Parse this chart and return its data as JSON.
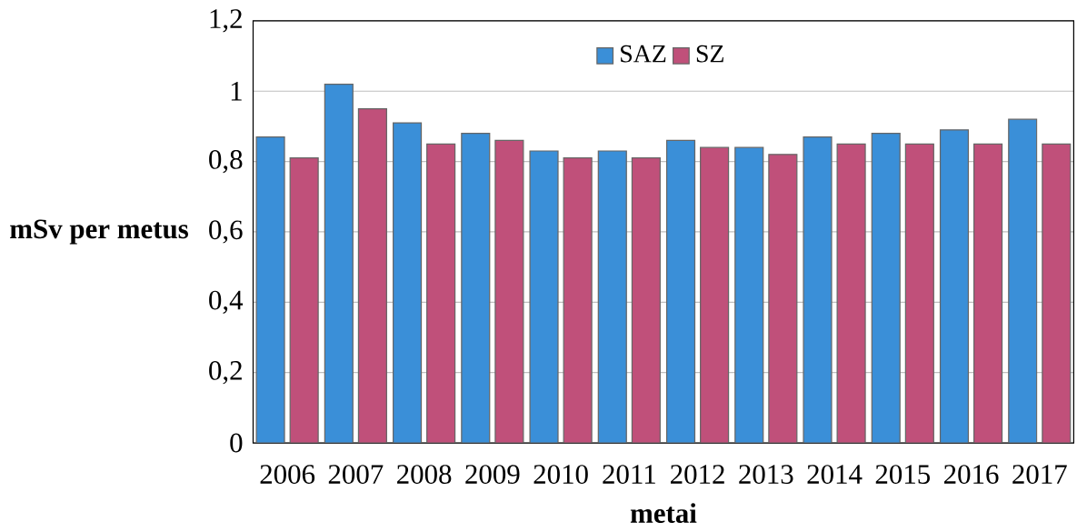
{
  "chart_data": {
    "type": "bar",
    "xlabel": "metai",
    "ylabel": "mSv per metus",
    "categories": [
      "2006",
      "2007",
      "2008",
      "2009",
      "2010",
      "2011",
      "2012",
      "2013",
      "2014",
      "2015",
      "2016",
      "2017"
    ],
    "series": [
      {
        "name": "SAZ",
        "color": "#3a8fd8",
        "values": [
          0.87,
          1.02,
          0.91,
          0.88,
          0.83,
          0.83,
          0.86,
          0.84,
          0.87,
          0.88,
          0.89,
          0.92
        ]
      },
      {
        "name": "SZ",
        "color": "#c0507a",
        "values": [
          0.81,
          0.95,
          0.85,
          0.86,
          0.81,
          0.81,
          0.84,
          0.82,
          0.85,
          0.85,
          0.85,
          0.85
        ]
      }
    ],
    "ylim": [
      0,
      1.2
    ],
    "yticks": [
      0,
      {
        "value": 0.2,
        "label": "0,2"
      },
      {
        "value": 0.4,
        "label": "0,4"
      },
      {
        "value": 0.6,
        "label": "0,6"
      },
      {
        "value": 0.8,
        "label": "0,8"
      },
      1,
      {
        "value": 1.2,
        "label": "1,2"
      }
    ],
    "grid": "y",
    "legend": "top"
  }
}
